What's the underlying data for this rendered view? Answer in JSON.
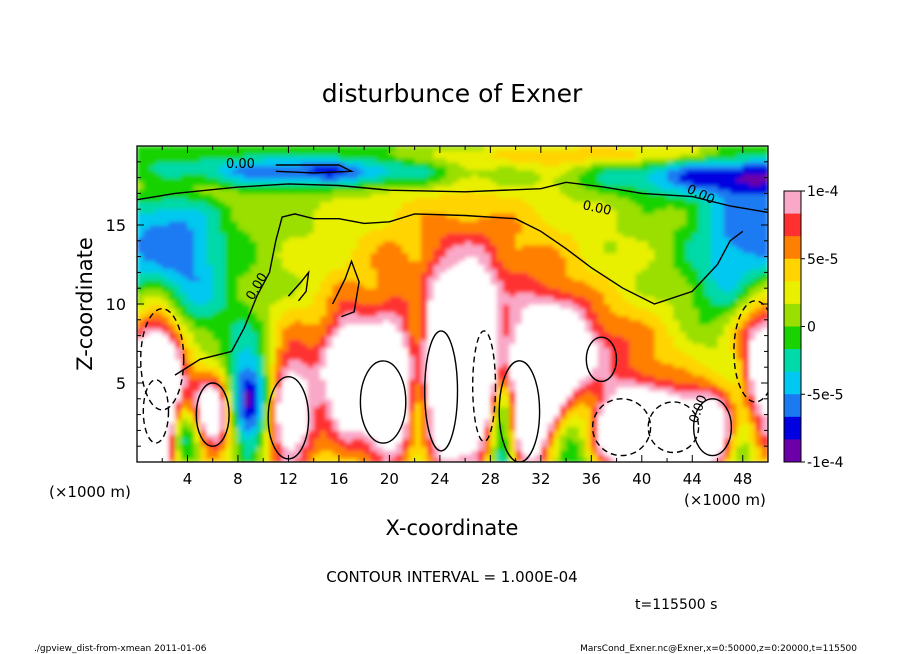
{
  "chart_data": {
    "type": "heatmap",
    "title": "disturbunce of Exner",
    "xlabel": "X-coordinate",
    "ylabel": "Z-coordinate",
    "x_unit": "(×1000 m)",
    "y_unit": "(×1000 m)",
    "xlim": [
      0,
      50
    ],
    "ylim": [
      0,
      20
    ],
    "x_ticks": [
      4,
      8,
      12,
      16,
      20,
      24,
      28,
      32,
      36,
      40,
      44,
      48
    ],
    "y_ticks": [
      5,
      10,
      15
    ],
    "colorbar": {
      "range": [
        -0.0001,
        0.0001
      ],
      "tick_values": [
        0.0001,
        5e-05,
        0,
        -5e-05,
        -0.0001
      ],
      "tick_labels": [
        "1e-4",
        "5e-5",
        "0",
        "-5e-5",
        "-1e-4"
      ],
      "colors": [
        "#f9a8c8",
        "#ff3030",
        "#ff7f00",
        "#ffd400",
        "#e8f000",
        "#9adf00",
        "#19d300",
        "#00d9a8",
        "#00c8f0",
        "#1a7af2",
        "#0000e0",
        "#6b00a8"
      ]
    },
    "contour_labels": [
      "0.00",
      "0.00",
      "0.00",
      "0.00",
      "0.00"
    ],
    "contour_interval_text": "CONTOUR INTERVAL = 1.000E-04",
    "time_text": "t=115500  s"
  },
  "footer": {
    "left": "./gpview_dist-from-xmean  2011-01-06",
    "right": "MarsCond_Exner.nc@Exner,x=0:50000,z=0:20000,t=115500"
  }
}
